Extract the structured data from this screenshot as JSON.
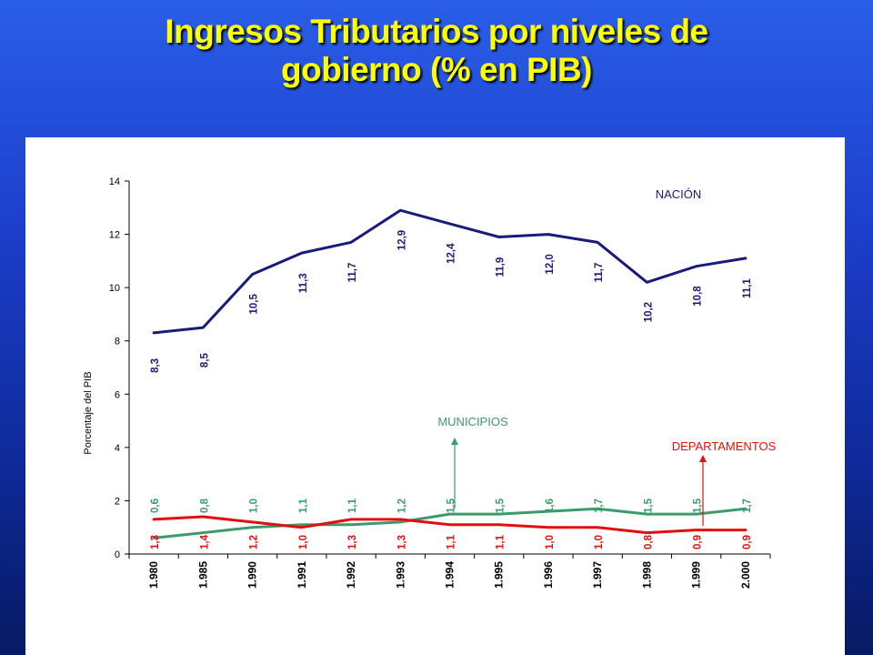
{
  "slide": {
    "title_line1": "Ingresos Tributarios por niveles de",
    "title_line2": "gobierno (% en PIB)"
  },
  "colors": {
    "nacion": "#1a1a7a",
    "municipios": "#3c9a6c",
    "departamentos": "#e01010",
    "title": "#ffff00"
  },
  "chart_data": {
    "type": "line",
    "ylabel": "Porcentaje del PIB",
    "ylim": [
      0,
      14
    ],
    "yticks": [
      "0",
      "2",
      "4",
      "6",
      "8",
      "10",
      "12",
      "14"
    ],
    "categories": [
      "1.980",
      "1.985",
      "1.990",
      "1.991",
      "1.992",
      "1.993",
      "1.994",
      "1.995",
      "1.996",
      "1.997",
      "1.998",
      "1.999",
      "2.000"
    ],
    "series": [
      {
        "name": "NACIÓN",
        "values": [
          8.3,
          8.5,
          10.5,
          11.3,
          11.7,
          12.9,
          12.4,
          11.9,
          12.0,
          11.7,
          10.2,
          10.8,
          11.1
        ],
        "labels": [
          "8,3",
          "8,5",
          "10,5",
          "11,3",
          "11,7",
          "12,9",
          "12,4",
          "11,9",
          "12,0",
          "11,7",
          "10,2",
          "10,8",
          "11,1"
        ]
      },
      {
        "name": "MUNICIPIOS",
        "values": [
          0.6,
          0.8,
          1.0,
          1.1,
          1.1,
          1.2,
          1.5,
          1.5,
          1.6,
          1.7,
          1.5,
          1.5,
          1.7
        ],
        "labels": [
          "0,6",
          "0,8",
          "1,0",
          "1,1",
          "1,1",
          "1,2",
          "1,5",
          "1,5",
          "1,6",
          "1,7",
          "1,5",
          "1,5",
          "1,7"
        ]
      },
      {
        "name": "DEPARTAMENTOS",
        "values": [
          1.3,
          1.4,
          1.2,
          1.0,
          1.3,
          1.3,
          1.1,
          1.1,
          1.0,
          1.0,
          0.8,
          0.9,
          0.9
        ],
        "labels": [
          "1,3",
          "1,4",
          "1,2",
          "1,0",
          "1,3",
          "1,3",
          "1,1",
          "1,1",
          "1,0",
          "1,0",
          "0,8",
          "0,9",
          "0,9"
        ]
      }
    ],
    "annotations": [
      "NACIÓN",
      "MUNICIPIOS",
      "DEPARTAMENTOS"
    ],
    "grid": false,
    "legend": "none"
  }
}
